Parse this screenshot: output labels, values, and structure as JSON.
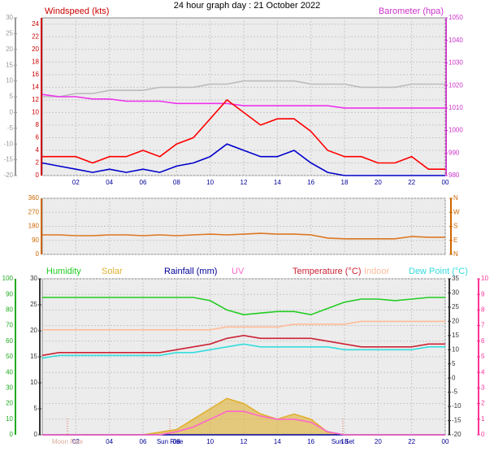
{
  "chart_data": [
    {
      "type": "line",
      "title": "24 hour graph day : 21 October 2022",
      "ylabel": "Windspeed (kts)",
      "y2label": "Barometer (hpa)",
      "x": [
        0,
        1,
        2,
        3,
        4,
        5,
        6,
        7,
        8,
        9,
        10,
        11,
        12,
        13,
        14,
        15,
        16,
        17,
        18,
        19,
        20,
        21,
        22,
        23,
        24
      ],
      "xlim": [
        0,
        24
      ],
      "xticks": [
        {
          "value": 2,
          "label": "02"
        },
        {
          "value": 4,
          "label": "04"
        },
        {
          "value": 6,
          "label": "06"
        },
        {
          "value": 8,
          "label": "08"
        },
        10,
        12,
        14,
        16,
        18,
        20,
        22,
        {
          "value": 24,
          "label": "00"
        }
      ],
      "ylim": [
        0,
        25
      ],
      "yticks": [
        0,
        2,
        4,
        6,
        8,
        10,
        12,
        14,
        16,
        18,
        20,
        22,
        24
      ],
      "ycolor": "#cc0000",
      "y2lim": [
        980,
        1050
      ],
      "y2ticks": [
        980,
        990,
        1000,
        1010,
        1020,
        1030,
        1040,
        1050
      ],
      "y2color": "#cc33cc",
      "y3lim": [
        -20,
        30
      ],
      "y3ticks": [
        -20,
        -15,
        -10,
        -5,
        0,
        5,
        10,
        15,
        20,
        25,
        30
      ],
      "y3color": "#999999",
      "grid": true,
      "series": [
        {
          "color": "#bbbbbb",
          "axis": "y3",
          "values": [
            5,
            5,
            6,
            6,
            7,
            7,
            7,
            8,
            8,
            8,
            9,
            9,
            10,
            10,
            10,
            10,
            9,
            9,
            9,
            8,
            8,
            8,
            9,
            9,
            9
          ]
        },
        {
          "color": "#ee33ee",
          "axis": "y2",
          "values": [
            1016,
            1015,
            1015,
            1014,
            1014,
            1013,
            1013,
            1013,
            1012,
            1012,
            1012,
            1012,
            1011,
            1011,
            1011,
            1011,
            1011,
            1011,
            1010,
            1010,
            1010,
            1010,
            1010,
            1010,
            1010
          ]
        },
        {
          "color": "#ff0000",
          "axis": "y",
          "values": [
            3,
            3,
            3,
            2,
            3,
            3,
            4,
            3,
            5,
            6,
            9,
            12,
            10,
            8,
            9,
            9,
            7,
            4,
            3,
            3,
            2,
            2,
            3,
            1,
            1
          ]
        },
        {
          "color": "#0000cc",
          "axis": "y",
          "values": [
            2,
            1.5,
            1,
            0.5,
            1,
            0.5,
            1,
            0.5,
            1.5,
            2,
            3,
            5,
            4,
            3,
            3,
            4,
            2,
            0.5,
            0,
            0,
            0,
            0,
            0,
            0,
            0
          ]
        }
      ]
    },
    {
      "type": "line",
      "x": [
        0,
        1,
        2,
        3,
        4,
        5,
        6,
        7,
        8,
        9,
        10,
        11,
        12,
        13,
        14,
        15,
        16,
        17,
        18,
        19,
        20,
        21,
        22,
        23,
        24
      ],
      "xlim": [
        0,
        24
      ],
      "xticks": [
        {
          "value": 2,
          "label": "02"
        },
        {
          "value": 4,
          "label": "04"
        },
        {
          "value": 6,
          "label": "06"
        },
        {
          "value": 8,
          "label": "08"
        },
        10,
        12,
        14,
        16,
        18,
        20,
        22,
        {
          "value": 24,
          "label": "00"
        }
      ],
      "ylim": [
        0,
        360
      ],
      "yticks": [
        0,
        90,
        180,
        270,
        360
      ],
      "ycolor": "#cc6600",
      "y2lim": [
        0,
        360
      ],
      "y2ticks": [
        {
          "value": 0,
          "label": "N"
        },
        {
          "value": 90,
          "label": "E"
        },
        {
          "value": 180,
          "label": "S"
        },
        {
          "value": 270,
          "label": "W"
        },
        {
          "value": 360,
          "label": "N"
        }
      ],
      "y2color": "#cc6600",
      "grid": true,
      "series": [
        {
          "color": "#dd7722",
          "axis": "y",
          "values": [
            125,
            125,
            120,
            120,
            125,
            125,
            120,
            125,
            120,
            125,
            130,
            125,
            130,
            135,
            130,
            130,
            125,
            105,
            100,
            100,
            100,
            100,
            115,
            110,
            110
          ]
        }
      ]
    },
    {
      "type": "line",
      "x": [
        0,
        1,
        2,
        3,
        4,
        5,
        6,
        7,
        8,
        9,
        10,
        11,
        12,
        13,
        14,
        15,
        16,
        17,
        18,
        19,
        20,
        21,
        22,
        23,
        24
      ],
      "xlim": [
        0,
        24
      ],
      "xticks": [
        {
          "value": 2,
          "label": "02"
        },
        {
          "value": 4,
          "label": "04"
        },
        {
          "value": 6,
          "label": "06"
        },
        {
          "value": 8,
          "label": "08"
        },
        10,
        12,
        14,
        16,
        18,
        20,
        22,
        {
          "value": 24,
          "label": "00"
        }
      ],
      "ylim": [
        0,
        100
      ],
      "yticks": [
        0,
        10,
        20,
        30,
        40,
        50,
        60,
        70,
        80,
        90,
        100
      ],
      "ycolor": "#22aa22",
      "y3lim": [
        0,
        30
      ],
      "y3ticks": [
        0,
        5,
        10,
        15,
        20,
        25,
        30
      ],
      "y3color": "#333333",
      "y2lim": [
        -20,
        35
      ],
      "y2ticks": [
        -20,
        -15,
        -10,
        -5,
        0,
        5,
        10,
        15,
        20,
        25,
        30,
        35
      ],
      "y2color": "#333333",
      "y4lim": [
        0,
        10
      ],
      "y4ticks": [
        0,
        1,
        2,
        3,
        4,
        5,
        6,
        7,
        8,
        9,
        10
      ],
      "y4color": "#ff3399",
      "grid": true,
      "annotations": [
        {
          "text": "Moon Rise",
          "x": 1.5
        },
        {
          "text": "Sun Rise",
          "x": 7.6
        },
        {
          "text": "Sun Set",
          "x": 17.9
        }
      ],
      "series": [
        {
          "name": "Humidity",
          "color": "#22cc22",
          "axis": "y",
          "values": [
            88,
            88,
            88,
            88,
            88,
            88,
            88,
            88,
            88,
            88,
            86,
            80,
            77,
            78,
            79,
            79,
            77,
            81,
            85,
            87,
            87,
            86,
            87,
            88,
            88
          ]
        },
        {
          "name": "Solar",
          "color": "#e0b030",
          "axis": "y3",
          "area": true,
          "values": [
            0,
            0,
            0,
            0,
            0,
            0,
            0,
            0.5,
            1,
            3,
            5,
            7,
            6,
            4,
            3,
            4,
            3,
            0.5,
            0,
            0,
            0,
            0,
            0,
            0,
            0
          ]
        },
        {
          "name": "Rainfall (mm)",
          "color": "#000099",
          "axis": "y3",
          "values": [
            0,
            0,
            0,
            0,
            0,
            0,
            0,
            0,
            0,
            0,
            0,
            0,
            0,
            0,
            0,
            0,
            0,
            0,
            0,
            0,
            0,
            0,
            0,
            0,
            0
          ]
        },
        {
          "name": "UV",
          "color": "#ff66cc",
          "axis": "y4",
          "values": [
            0,
            0,
            0,
            0,
            0,
            0,
            0,
            0,
            0.2,
            0.5,
            1,
            1.5,
            1.5,
            1.2,
            1,
            1,
            0.8,
            0.2,
            0,
            0,
            0,
            0,
            0,
            0,
            0
          ]
        },
        {
          "name": "Temperature (°C)",
          "color": "#cc2233",
          "axis": "y2",
          "values": [
            8,
            9,
            9,
            9,
            9,
            9,
            9,
            9,
            10,
            11,
            12,
            14,
            15,
            14,
            14,
            14,
            14,
            13,
            12,
            11,
            11,
            11,
            11,
            12,
            12
          ]
        },
        {
          "name": "Indoor",
          "color": "#ffbb99",
          "axis": "y2",
          "values": [
            17,
            17,
            17,
            17,
            17,
            17,
            17,
            17,
            17,
            17,
            17,
            18,
            18,
            18,
            18,
            19,
            19,
            19,
            19,
            20,
            20,
            20,
            20,
            20,
            20
          ]
        },
        {
          "name": "Dew Point (°C)",
          "color": "#33dddd",
          "axis": "y2",
          "values": [
            7,
            8,
            8,
            8,
            8,
            8,
            8,
            8,
            9,
            9,
            10,
            11,
            12,
            11,
            11,
            11,
            11,
            11,
            10,
            10,
            10,
            10,
            10,
            11,
            11
          ]
        }
      ]
    }
  ]
}
